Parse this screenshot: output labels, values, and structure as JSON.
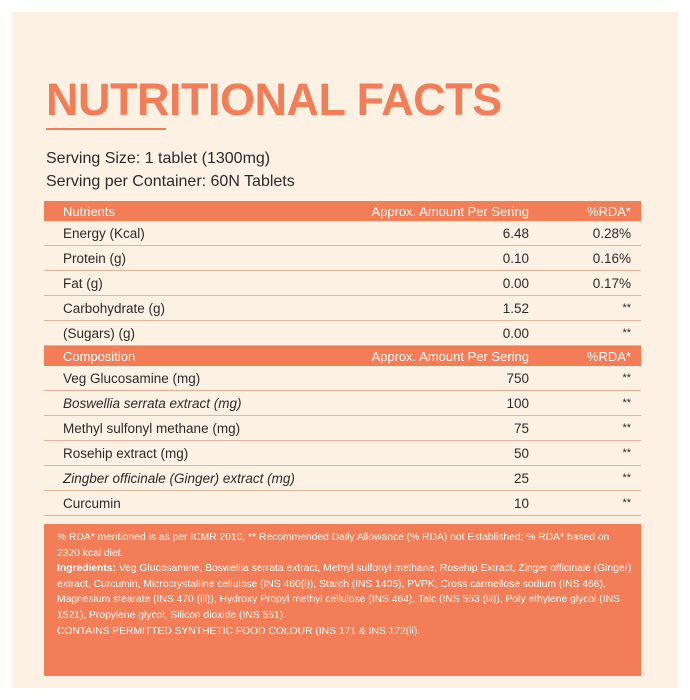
{
  "title": "NUTRITIONAL FACTS",
  "serving": {
    "size": "Serving Size: 1 tablet (1300mg)",
    "per_container": "Serving per Container: 60N Tablets"
  },
  "nutrients_header": {
    "col1": "Nutrients",
    "col2": "Approx. Amount Per Sering",
    "col3": "%RDA*"
  },
  "nutrients": [
    {
      "name": "Energy (Kcal)",
      "amount": "6.48",
      "rda": "0.28%"
    },
    {
      "name": "Protein (g)",
      "amount": "0.10",
      "rda": "0.16%"
    },
    {
      "name": "Fat (g)",
      "amount": "0.00",
      "rda": "0.17%"
    },
    {
      "name": "Carbohydrate (g)",
      "amount": "1.52",
      "rda": "**"
    },
    {
      "name": "(Sugars) (g)",
      "amount": "0.00",
      "rda": "**"
    }
  ],
  "composition_header": {
    "col1": "Composition",
    "col2": "Approx. Amount Per Sering",
    "col3": "%RDA*"
  },
  "composition": [
    {
      "name": "Veg Glucosamine (mg)",
      "amount": "750",
      "rda": "**"
    },
    {
      "name": "Boswellia serrata extract (mg)",
      "amount": "100",
      "rda": "**"
    },
    {
      "name": "Methyl sulfonyl methane (mg)",
      "amount": "75",
      "rda": "**"
    },
    {
      "name": "Rosehip extract (mg)",
      "amount": "50",
      "rda": "**"
    },
    {
      "name": "Zingber officinale (Ginger) extract (mg)",
      "amount": "25",
      "rda": "**"
    },
    {
      "name": "Curcumin",
      "amount": "10",
      "rda": "**"
    }
  ],
  "notes": {
    "rda_note": "% RDA* mentioned is as per ICMR 2010, ** Recommended Daily Allowance (% RDA) not Established; % RDA* based on 2320 kcal diet.",
    "ingredients_label": "Ingredients:",
    "ingredients_text": "Veg Glucosamine, Boswellia serrata extract, Methyl sulfonyl methane, Rosehip Extract, Zinger officinale (Ginger) extract, Curcumin, Microcrystalline cellulose (INS 460(i)), Starch (INS 1405), PVPK, Cross carmellose sodium (INS 466), Magnesium stearate (INS 470 (iii)), Hydroxy Propyl methyl cellulose (INS 464), Talc (INS 553 (iii)), Poly ethylene glycol (INS 1521), Propylene glycol, Silicon dioxide (INS 551).",
    "colour_note": "CONTAINS PERMITTED SYNTHETIC FOOD COLOUR (INS 171 & INS 172(ii)."
  },
  "colors": {
    "accent": "#f27d57",
    "background": "#fdf1e4",
    "text": "#2b2b2b"
  }
}
